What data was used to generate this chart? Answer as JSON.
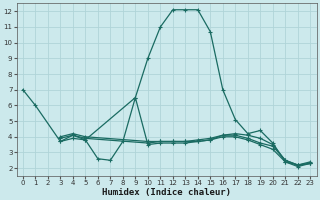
{
  "title": "",
  "xlabel": "Humidex (Indice chaleur)",
  "bg_color": "#cce9ec",
  "line_color": "#1a6b62",
  "grid_color": "#b0d4d8",
  "xlim": [
    -0.5,
    23.5
  ],
  "ylim": [
    1.5,
    12.5
  ],
  "xticks": [
    0,
    1,
    2,
    3,
    4,
    5,
    6,
    7,
    8,
    9,
    10,
    11,
    12,
    13,
    14,
    15,
    16,
    17,
    18,
    19,
    20,
    21,
    22,
    23
  ],
  "yticks": [
    2,
    3,
    4,
    5,
    6,
    7,
    8,
    9,
    10,
    11,
    12
  ],
  "lines": [
    {
      "x": [
        0,
        1,
        3,
        4,
        5,
        6,
        7,
        8,
        9,
        10,
        11,
        12,
        13,
        14,
        15,
        16,
        17,
        18,
        19,
        20,
        21,
        22,
        23
      ],
      "y": [
        7.0,
        6.0,
        3.7,
        4.1,
        3.8,
        2.6,
        2.5,
        3.7,
        6.5,
        9.0,
        11.0,
        12.1,
        12.1,
        12.1,
        10.7,
        7.0,
        5.1,
        4.2,
        4.4,
        3.6,
        2.4,
        2.1,
        2.3
      ]
    },
    {
      "x": [
        3,
        4,
        5,
        9,
        10,
        11,
        12,
        13,
        14,
        15,
        16,
        17,
        18,
        19,
        20,
        21,
        22,
        23
      ],
      "y": [
        3.7,
        3.9,
        3.8,
        6.5,
        3.5,
        3.6,
        3.6,
        3.6,
        3.7,
        3.8,
        4.1,
        4.2,
        4.1,
        3.9,
        3.5,
        2.5,
        2.2,
        2.3
      ]
    },
    {
      "x": [
        3,
        4,
        5,
        10,
        11,
        12,
        13,
        14,
        15,
        16,
        17,
        18,
        19,
        20,
        21,
        22,
        23
      ],
      "y": [
        3.9,
        4.1,
        3.9,
        3.6,
        3.7,
        3.7,
        3.7,
        3.7,
        3.8,
        4.0,
        4.0,
        3.8,
        3.5,
        3.2,
        2.4,
        2.2,
        2.3
      ]
    },
    {
      "x": [
        3,
        4,
        5,
        10,
        11,
        12,
        13,
        14,
        15,
        16,
        17,
        18,
        19,
        20,
        21,
        22,
        23
      ],
      "y": [
        4.0,
        4.2,
        4.0,
        3.7,
        3.7,
        3.7,
        3.7,
        3.8,
        3.9,
        4.1,
        4.1,
        3.9,
        3.6,
        3.4,
        2.5,
        2.2,
        2.4
      ]
    }
  ]
}
